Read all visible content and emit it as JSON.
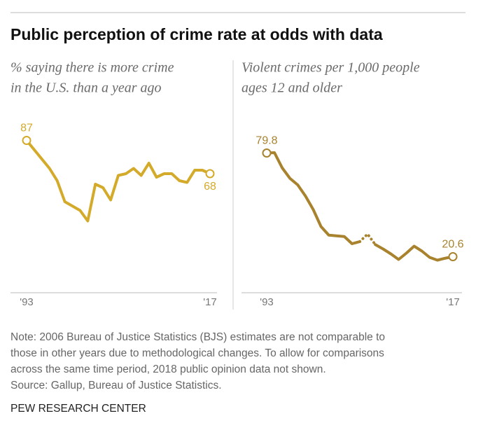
{
  "title": "Public perception of crime rate at odds with data",
  "chart_data": [
    {
      "type": "line",
      "subtitle": [
        "% saying there is more crime",
        "in the U.S. than a year ago"
      ],
      "x": [
        1993,
        1996,
        1997,
        1998,
        2000,
        2001,
        2002,
        2003,
        2004,
        2005,
        2006,
        2007,
        2008,
        2009,
        2010,
        2011,
        2012,
        2013,
        2014,
        2015,
        2016,
        2017
      ],
      "series": [
        {
          "color": "#d4aa2a",
          "style": "solid",
          "values": [
            87,
            71,
            64,
            52,
            47,
            41,
            62,
            60,
            53,
            67,
            68,
            71,
            67,
            74,
            66,
            68,
            68,
            64,
            63,
            70,
            70,
            68
          ]
        }
      ],
      "xlim": [
        1993,
        2017
      ],
      "xticks": [
        {
          "value": 1993,
          "label": "'93"
        },
        {
          "value": 2017,
          "label": "'17"
        }
      ],
      "ylim": [
        0,
        100
      ]
    },
    {
      "type": "line",
      "subtitle": [
        "Violent crimes per 1,000 people",
        "ages 12 and older"
      ],
      "x": [
        1993,
        1994,
        1995,
        1996,
        1997,
        1998,
        1999,
        2000,
        2001,
        2002,
        2003,
        2004,
        2005,
        2006,
        2007,
        2008,
        2009,
        2010,
        2011,
        2012,
        2013,
        2014,
        2015,
        2016,
        2017
      ],
      "series": [
        {
          "color": "#a8822d",
          "style": "solid",
          "values": [
            79.8,
            80.0,
            71.3,
            65.3,
            61.6,
            55.2,
            47.5,
            37.8,
            32.9,
            32.5,
            32.1,
            28.0,
            29.2,
            null,
            27.5,
            25.0,
            22.2,
            19.0,
            22.6,
            26.6,
            23.8,
            20.2,
            18.6,
            19.7,
            20.6
          ]
        },
        {
          "color": "#a8822d",
          "style": "dotted",
          "values": [
            null,
            null,
            null,
            null,
            null,
            null,
            null,
            null,
            null,
            null,
            null,
            null,
            null,
            33.5,
            null,
            null,
            null,
            null,
            null,
            null,
            null,
            null,
            null,
            null,
            null
          ]
        }
      ],
      "xlim": [
        1993,
        2017
      ],
      "xticks": [
        {
          "value": 1993,
          "label": "'93"
        },
        {
          "value": 2017,
          "label": "'17"
        }
      ],
      "ylim": [
        0,
        100
      ]
    }
  ],
  "note": [
    "Note: 2006 Bureau of Justice Statistics (BJS) estimates are not comparable to",
    "those in other years due to methodological changes. To allow for comparisons",
    "across the same time period, 2018 public opinion data not shown."
  ],
  "source": "Source: Gallup, Bureau of Justice Statistics.",
  "footer": "PEW RESEARCH CENTER"
}
